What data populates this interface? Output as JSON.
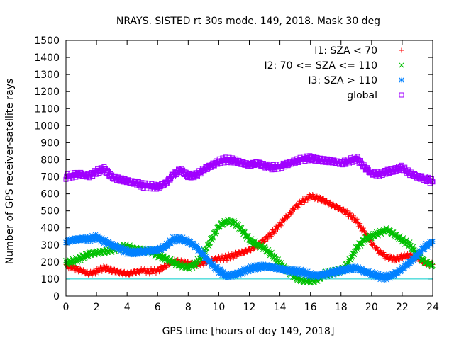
{
  "chart_data": {
    "type": "scatter",
    "title": "NRAYS. SISTED rt 30s mode. 149, 2018. Mask 30 deg",
    "xlabel": "GPS time [hours of doy 149, 2018]",
    "ylabel": "Number of GPS receiver-satellite rays",
    "xlim": [
      0,
      24
    ],
    "ylim": [
      0,
      1500
    ],
    "xticks": [
      0,
      2,
      4,
      6,
      8,
      10,
      12,
      14,
      16,
      18,
      20,
      22,
      24
    ],
    "yticks": [
      0,
      100,
      200,
      300,
      400,
      500,
      600,
      700,
      800,
      900,
      1000,
      1100,
      1200,
      1300,
      1400,
      1500
    ],
    "legend_position": "top-right",
    "reference_line": {
      "y": 100,
      "color": "#00cccc"
    },
    "series": [
      {
        "name": "I1: SZA < 70",
        "marker": "+",
        "color": "#ff0000",
        "x": [
          0,
          0.5,
          1,
          1.5,
          2,
          2.5,
          3,
          3.5,
          4,
          4.5,
          5,
          5.5,
          6,
          6.5,
          7,
          7.5,
          8,
          8.5,
          9,
          9.5,
          10,
          10.5,
          11,
          11.5,
          12,
          12.5,
          13,
          13.5,
          14,
          14.5,
          15,
          15.5,
          16,
          16.5,
          17,
          17.5,
          18,
          18.5,
          19,
          19.5,
          20,
          20.5,
          21,
          21.5,
          22,
          22.5,
          23,
          23.5,
          24
        ],
        "y": [
          180,
          165,
          150,
          130,
          145,
          165,
          150,
          140,
          130,
          140,
          150,
          145,
          150,
          175,
          205,
          200,
          190,
          185,
          195,
          210,
          220,
          225,
          240,
          255,
          270,
          295,
          330,
          370,
          420,
          470,
          520,
          560,
          585,
          575,
          555,
          530,
          510,
          480,
          440,
          380,
          310,
          260,
          230,
          215,
          230,
          240,
          220,
          195,
          185
        ]
      },
      {
        "name": "I2: 70 <= SZA <= 110",
        "marker": "x",
        "color": "#00c000",
        "x": [
          0,
          0.5,
          1,
          1.5,
          2,
          2.5,
          3,
          3.5,
          4,
          4.5,
          5,
          5.5,
          6,
          6.5,
          7,
          7.5,
          8,
          8.5,
          9,
          9.5,
          10,
          10.5,
          11,
          11.5,
          12,
          12.5,
          13,
          13.5,
          14,
          14.5,
          15,
          15.5,
          16,
          16.5,
          17,
          17.5,
          18,
          18.5,
          19,
          19.5,
          20,
          20.5,
          21,
          21.5,
          22,
          22.5,
          23,
          23.5,
          24
        ],
        "y": [
          195,
          205,
          225,
          245,
          255,
          260,
          270,
          285,
          290,
          275,
          270,
          265,
          240,
          220,
          200,
          180,
          165,
          190,
          250,
          330,
          410,
          440,
          430,
          390,
          330,
          300,
          280,
          240,
          190,
          150,
          110,
          90,
          85,
          100,
          130,
          140,
          150,
          200,
          280,
          330,
          350,
          370,
          390,
          360,
          330,
          300,
          240,
          200,
          180
        ]
      },
      {
        "name": "I3: SZA > 110",
        "marker": "*",
        "color": "#0080ff",
        "x": [
          0,
          0.5,
          1,
          1.5,
          2,
          2.5,
          3,
          3.5,
          4,
          4.5,
          5,
          5.5,
          6,
          6.5,
          7,
          7.5,
          8,
          8.5,
          9,
          9.5,
          10,
          10.5,
          11,
          11.5,
          12,
          12.5,
          13,
          13.5,
          14,
          14.5,
          15,
          15.5,
          16,
          16.5,
          17,
          17.5,
          18,
          18.5,
          19,
          19.5,
          20,
          20.5,
          21,
          21.5,
          22,
          22.5,
          23,
          23.5,
          24
        ],
        "y": [
          320,
          330,
          335,
          335,
          345,
          320,
          300,
          280,
          260,
          255,
          260,
          265,
          270,
          290,
          330,
          335,
          320,
          290,
          240,
          190,
          150,
          120,
          125,
          140,
          160,
          170,
          175,
          170,
          160,
          150,
          145,
          140,
          125,
          120,
          130,
          140,
          150,
          160,
          165,
          145,
          130,
          115,
          110,
          130,
          160,
          200,
          240,
          290,
          320
        ]
      },
      {
        "name": "global",
        "marker": "square",
        "color": "#a000ff",
        "x": [
          0,
          0.5,
          1,
          1.5,
          2,
          2.5,
          3,
          3.5,
          4,
          4.5,
          5,
          5.5,
          6,
          6.5,
          7,
          7.5,
          8,
          8.5,
          9,
          9.5,
          10,
          10.5,
          11,
          11.5,
          12,
          12.5,
          13,
          13.5,
          14,
          14.5,
          15,
          15.5,
          16,
          16.5,
          17,
          17.5,
          18,
          18.5,
          19,
          19.5,
          20,
          20.5,
          21,
          21.5,
          22,
          22.5,
          23,
          23.5,
          24
        ],
        "y": [
          700,
          710,
          715,
          705,
          730,
          745,
          700,
          685,
          675,
          665,
          650,
          645,
          640,
          660,
          710,
          740,
          705,
          710,
          740,
          765,
          790,
          800,
          795,
          780,
          770,
          780,
          765,
          755,
          760,
          775,
          790,
          805,
          810,
          800,
          795,
          790,
          780,
          790,
          810,
          760,
          720,
          715,
          730,
          740,
          755,
          720,
          700,
          690,
          670
        ]
      }
    ]
  }
}
